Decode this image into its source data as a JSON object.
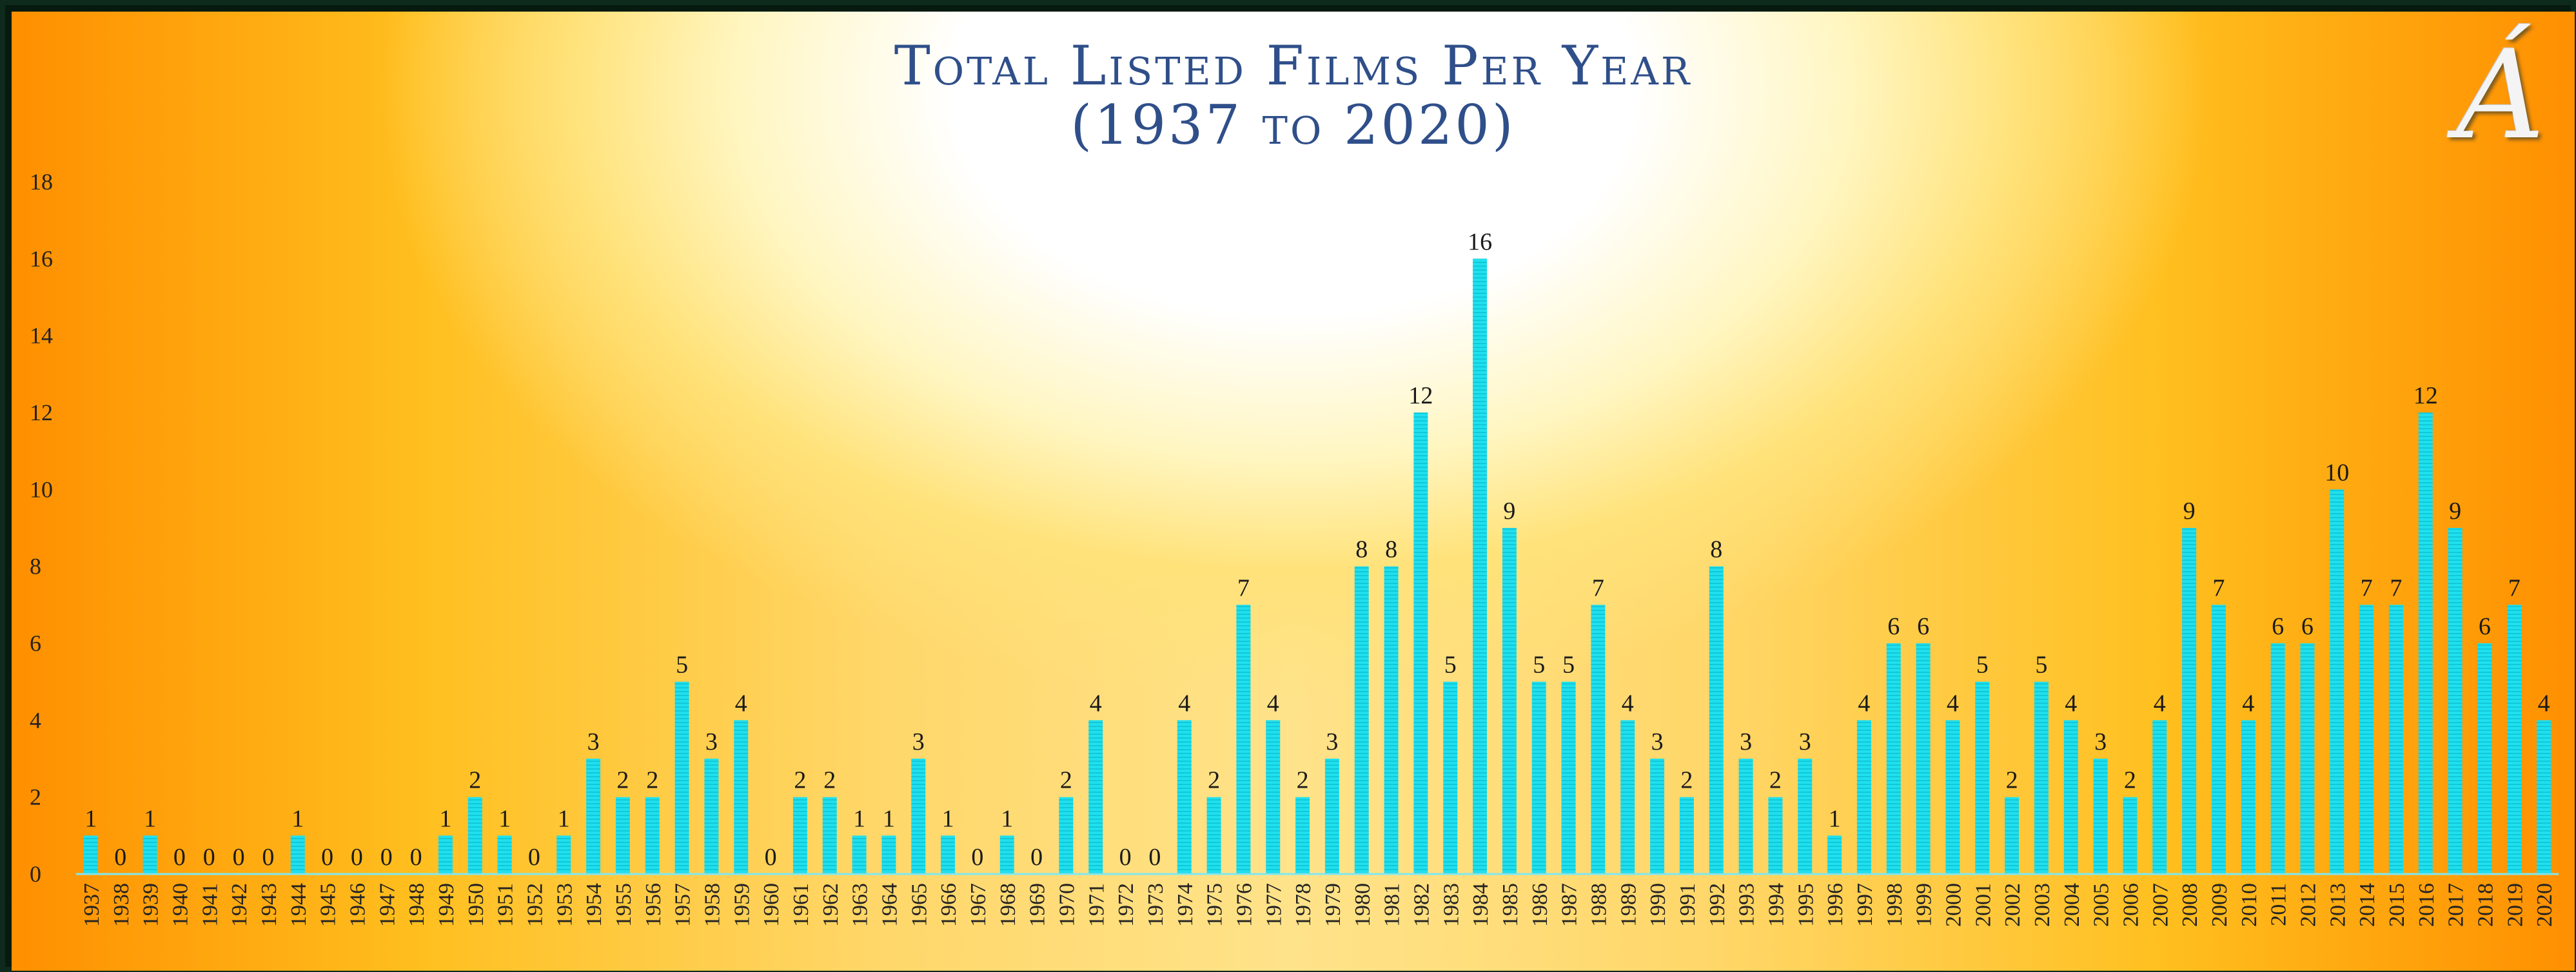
{
  "chart_data": {
    "type": "bar",
    "title": "Total Listed Films Per Year",
    "subtitle": "(1937 to 2020)",
    "xlabel": "",
    "ylabel": "",
    "ylim": [
      0,
      18
    ],
    "yticks": [
      "0",
      "2",
      "4",
      "6",
      "8",
      "10",
      "12",
      "14",
      "16",
      "18"
    ],
    "grid": false,
    "legend": "none",
    "bar_color": "#1fe0ee",
    "categories": [
      "1937",
      "1938",
      "1939",
      "1940",
      "1941",
      "1942",
      "1943",
      "1944",
      "1945",
      "1946",
      "1947",
      "1948",
      "1949",
      "1950",
      "1951",
      "1952",
      "1953",
      "1954",
      "1955",
      "1956",
      "1957",
      "1958",
      "1959",
      "1960",
      "1961",
      "1962",
      "1963",
      "1964",
      "1965",
      "1966",
      "1967",
      "1968",
      "1969",
      "1970",
      "1971",
      "1972",
      "1973",
      "1974",
      "1975",
      "1976",
      "1977",
      "1978",
      "1979",
      "1980",
      "1981",
      "1982",
      "1983",
      "1984",
      "1985",
      "1986",
      "1987",
      "1988",
      "1989",
      "1990",
      "1991",
      "1992",
      "1993",
      "1994",
      "1995",
      "1996",
      "1997",
      "1998",
      "1999",
      "2000",
      "2001",
      "2002",
      "2003",
      "2004",
      "2005",
      "2006",
      "2007",
      "2008",
      "2009",
      "2010",
      "2011",
      "2012",
      "2013",
      "2014",
      "2015",
      "2016",
      "2017",
      "2018",
      "2019",
      "2020"
    ],
    "values": [
      1,
      0,
      1,
      0,
      0,
      0,
      0,
      1,
      0,
      0,
      0,
      0,
      1,
      2,
      1,
      0,
      1,
      3,
      2,
      2,
      5,
      3,
      4,
      0,
      2,
      2,
      1,
      1,
      3,
      1,
      0,
      1,
      0,
      2,
      4,
      0,
      0,
      4,
      2,
      7,
      4,
      2,
      3,
      8,
      8,
      12,
      5,
      16,
      9,
      5,
      5,
      7,
      4,
      3,
      2,
      8,
      3,
      2,
      3,
      1,
      4,
      6,
      6,
      4,
      5,
      2,
      5,
      4,
      3,
      2,
      4,
      9,
      7,
      4,
      6,
      6,
      10,
      7,
      7,
      12,
      9,
      6,
      7,
      4
    ]
  },
  "colors": {
    "accent_title": "#2f4f8a",
    "bar": "#1fe0ee",
    "background_edge": "#ff8f00",
    "background_center": "#ffffff"
  },
  "logo": {
    "glyph": "Á"
  }
}
